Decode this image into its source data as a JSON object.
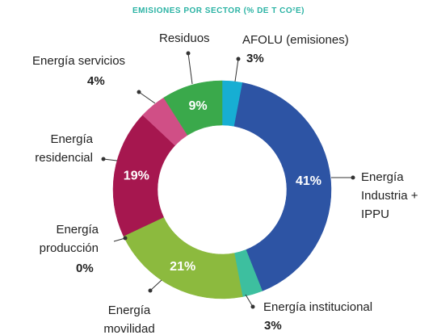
{
  "chart_data": {
    "type": "donut",
    "title": "EMISIONES POR SECTOR (% DE T CO²E)",
    "categories": [
      "AFOLU (emisiones)",
      "Energía Industria + IPPU",
      "Energía institucional",
      "Energía movilidad",
      "Energía producción",
      "Energía residencial",
      "Energía servicios",
      "Residuos"
    ],
    "values": [
      3,
      41,
      3,
      21,
      0,
      19,
      4,
      9
    ],
    "value_labels": [
      "3%",
      "41%",
      "3%",
      "21%",
      "0%",
      "19%",
      "4%",
      "9%"
    ],
    "colors": [
      "#17aed3",
      "#2d54a4",
      "#3dbf9f",
      "#8cba3e",
      "#7a9a30",
      "#a6174f",
      "#d04f86",
      "#3aa94b"
    ]
  }
}
